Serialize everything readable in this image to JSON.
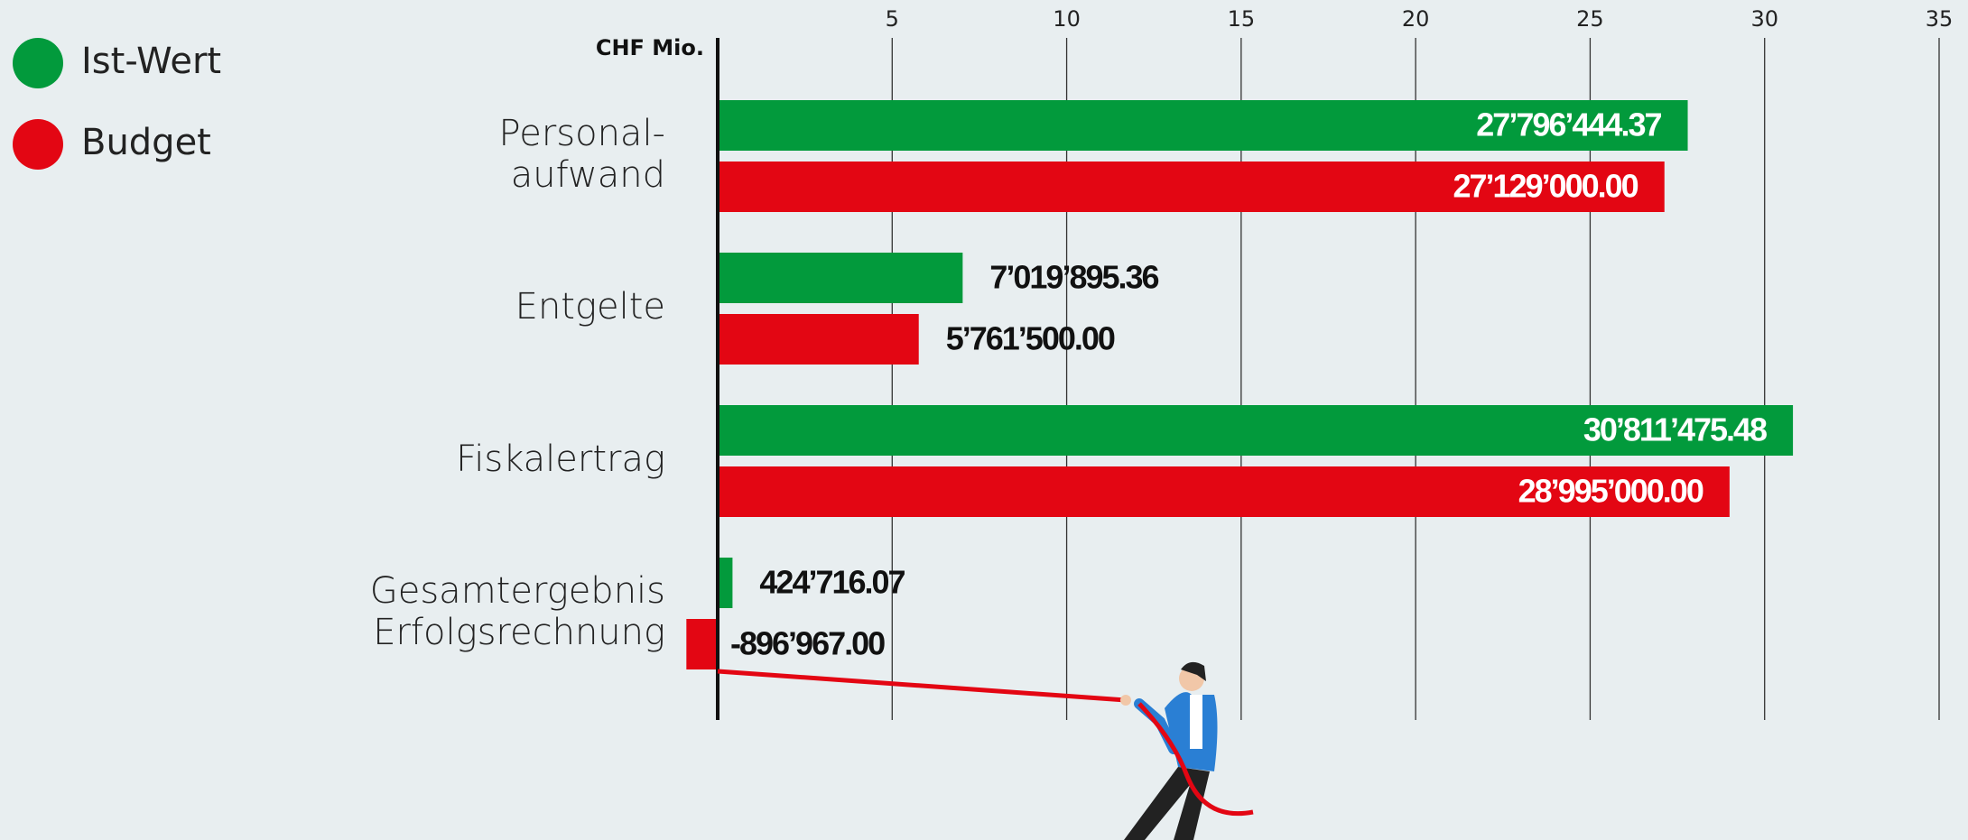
{
  "chart_data": {
    "type": "bar",
    "orientation": "horizontal",
    "x_axis_label": "CHF Mio.",
    "categories": [
      "Personal-\naufwand",
      "Entgelte",
      "Fiskalertrag",
      "Gesamtergebnis\nErfolgsrechnung"
    ],
    "series": [
      {
        "name": "Ist-Wert",
        "color": "#029a3c",
        "values": [
          27.79644437,
          7.01989536,
          30.81147548,
          0.42471607
        ],
        "value_labels": [
          "27’796’444.37",
          "7’019’895.36",
          "30’811’475.48",
          "424’716.07"
        ]
      },
      {
        "name": "Budget",
        "color": "#e30613",
        "values": [
          27.129,
          5.7615,
          28.995,
          -0.896967
        ],
        "value_labels": [
          "27’129’000.00",
          "5’761’500.00",
          "28’995’000.00",
          "-896’967.00"
        ]
      }
    ],
    "xlim": [
      0,
      35
    ],
    "xticks": [
      5,
      10,
      15,
      20,
      25,
      30,
      35
    ],
    "grid": true,
    "legend": "top-left"
  }
}
